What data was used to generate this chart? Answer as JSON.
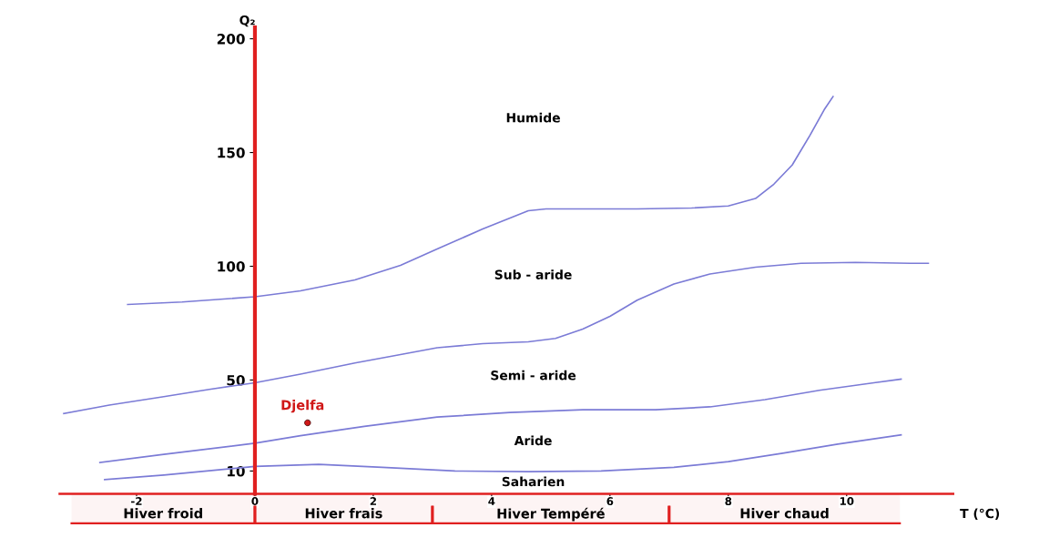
{
  "chart_data": {
    "type": "line",
    "xlabel": "T (°C)",
    "ylabel": "Q₂",
    "xlim": [
      -3.3,
      11.8
    ],
    "ylim": [
      -13,
      205
    ],
    "xticks": [
      -2,
      0,
      2,
      4,
      6,
      8,
      10
    ],
    "yticks": [
      10,
      50,
      100,
      150,
      200
    ],
    "grid": false,
    "legend": false,
    "marker": "none",
    "line_style": "solid",
    "series": [
      {
        "color": "#7b7bd6",
        "x": [
          -2.15,
          -1.23,
          0,
          0.77,
          1.69,
          2.46,
          3.08,
          3.85,
          4.62,
          4.92,
          5.69,
          6.46,
          7.38,
          8.0,
          8.46,
          8.77,
          9.08,
          9.38,
          9.62,
          9.77
        ],
        "values": [
          83.2,
          84.3,
          86.6,
          89.2,
          94.0,
          100.4,
          107.6,
          116.4,
          124.4,
          125.2,
          125.2,
          125.2,
          125.6,
          126.5,
          129.8,
          136.1,
          144.5,
          157.6,
          168.8,
          174.6
        ]
      },
      {
        "color": "#7b7bd6",
        "x": [
          -3.23,
          -2.46,
          -1.54,
          -0.77,
          0,
          0.77,
          1.69,
          2.46,
          3.08,
          3.85,
          4.62,
          5.08,
          5.54,
          6.0,
          6.46,
          7.08,
          7.69,
          8.46,
          9.23,
          10.15,
          11.08,
          11.38
        ],
        "values": [
          35.3,
          39.0,
          42.7,
          45.9,
          48.8,
          52.6,
          57.5,
          61.2,
          64.2,
          66.0,
          66.8,
          68.3,
          72.4,
          78.0,
          85.1,
          92.2,
          96.6,
          99.6,
          101.3,
          101.7,
          101.3,
          101.3
        ]
      },
      {
        "color": "#7b7bd6",
        "x": [
          -2.62,
          -1.54,
          0,
          0.77,
          1.85,
          3.08,
          4.31,
          5.54,
          6.77,
          7.69,
          8.62,
          9.54,
          10.46,
          10.92
        ],
        "values": [
          13.7,
          17.3,
          22.2,
          25.5,
          29.6,
          33.7,
          35.7,
          36.9,
          36.9,
          38.2,
          41.4,
          45.5,
          48.8,
          50.4
        ]
      },
      {
        "color": "#7b7bd6",
        "x": [
          -2.54,
          -1.54,
          0,
          1.08,
          2.15,
          3.38,
          4.62,
          5.85,
          7.08,
          8.0,
          8.92,
          9.85,
          10.92
        ],
        "values": [
          6.2,
          8.2,
          12.0,
          12.9,
          11.6,
          10.0,
          9.7,
          10.0,
          11.6,
          14.1,
          17.8,
          21.8,
          25.9
        ]
      },
      {
        "type": "scatter",
        "name": "Djelfa",
        "color": "#d01818",
        "x": [
          0.89
        ],
        "values": [
          31.2
        ],
        "marker": "circle"
      }
    ],
    "annotations": [
      "Humide",
      "Sub - aride",
      "Semi - aride",
      "Aride",
      "Saharien"
    ],
    "bands": [
      {
        "axis": "x",
        "from": -3.1,
        "to": 0,
        "label": "Hiver froid",
        "color": "#e02020"
      },
      {
        "axis": "x",
        "from": 0,
        "to": 3,
        "label": "Hiver frais",
        "color": "#e02020"
      },
      {
        "axis": "x",
        "from": 3,
        "to": 7,
        "label": "Hiver Tempéré",
        "color": "#e02020"
      },
      {
        "axis": "x",
        "from": 7,
        "to": 10.9,
        "label": "Hiver chaud",
        "color": "#e02020"
      }
    ]
  }
}
